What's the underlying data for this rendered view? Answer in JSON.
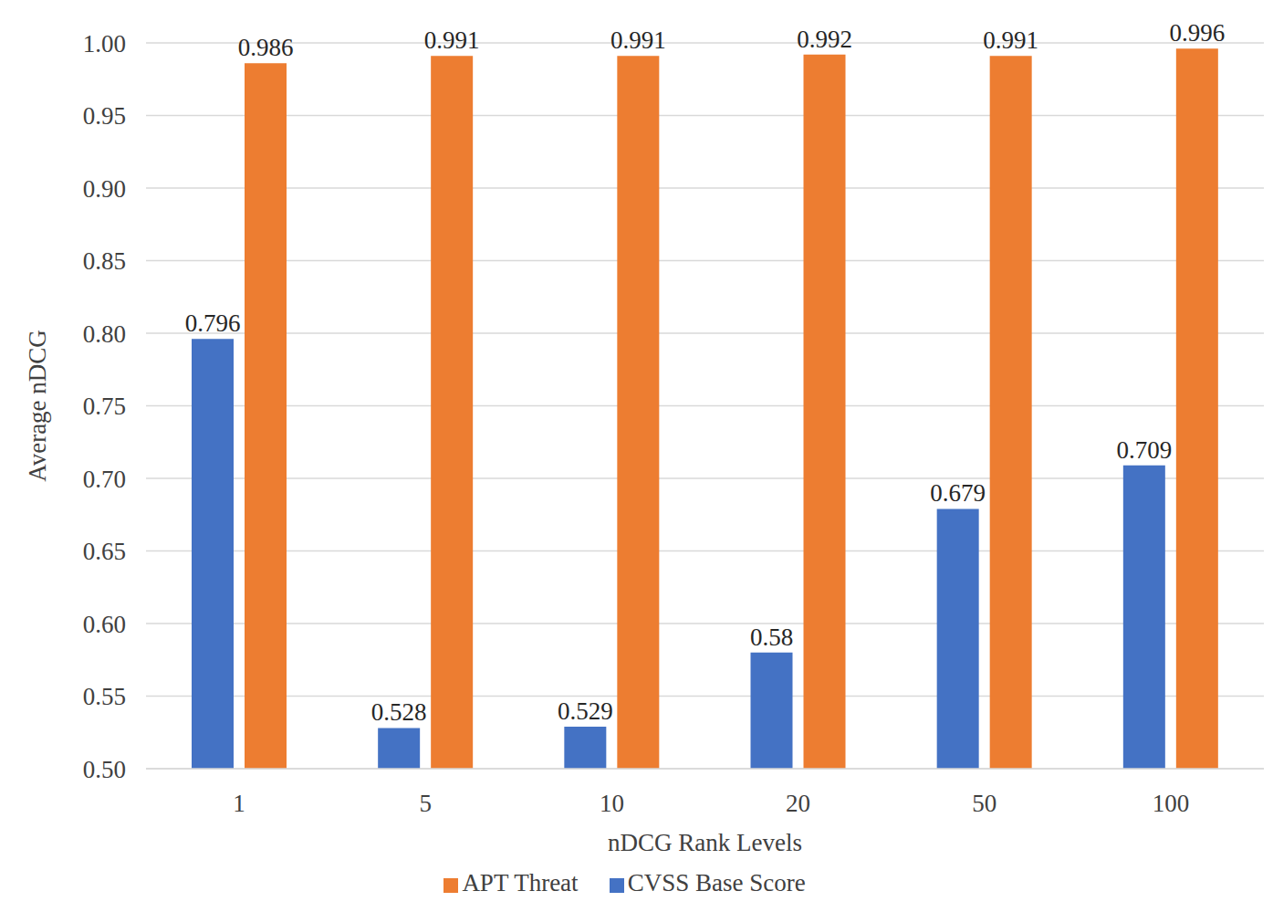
{
  "chart_data": {
    "type": "bar",
    "xlabel": "nDCG Rank Levels",
    "ylabel": "Average nDCG",
    "categories": [
      "1",
      "5",
      "10",
      "20",
      "50",
      "100"
    ],
    "series": [
      {
        "name": "CVSS Base Score",
        "color": "#4472c4",
        "values": [
          0.796,
          0.528,
          0.529,
          0.58,
          0.679,
          0.709
        ]
      },
      {
        "name": "APT Threat",
        "color": "#ed7d31",
        "values": [
          0.986,
          0.991,
          0.991,
          0.992,
          0.991,
          0.996
        ]
      }
    ],
    "ylim": [
      0.5,
      1.0
    ],
    "yticks": [
      {
        "value": 0.5,
        "label": "0.50"
      },
      {
        "value": 0.55,
        "label": "0.55"
      },
      {
        "value": 0.6,
        "label": "0.60"
      },
      {
        "value": 0.65,
        "label": "0.65"
      },
      {
        "value": 0.7,
        "label": "0.70"
      },
      {
        "value": 0.75,
        "label": "0.75"
      },
      {
        "value": 0.8,
        "label": "0.80"
      },
      {
        "value": 0.85,
        "label": "0.85"
      },
      {
        "value": 0.9,
        "label": "0.90"
      },
      {
        "value": 0.95,
        "label": "0.95"
      },
      {
        "value": 1.0,
        "label": "1.00"
      }
    ],
    "grid": true,
    "legend": "bottom",
    "data_labels": true
  }
}
